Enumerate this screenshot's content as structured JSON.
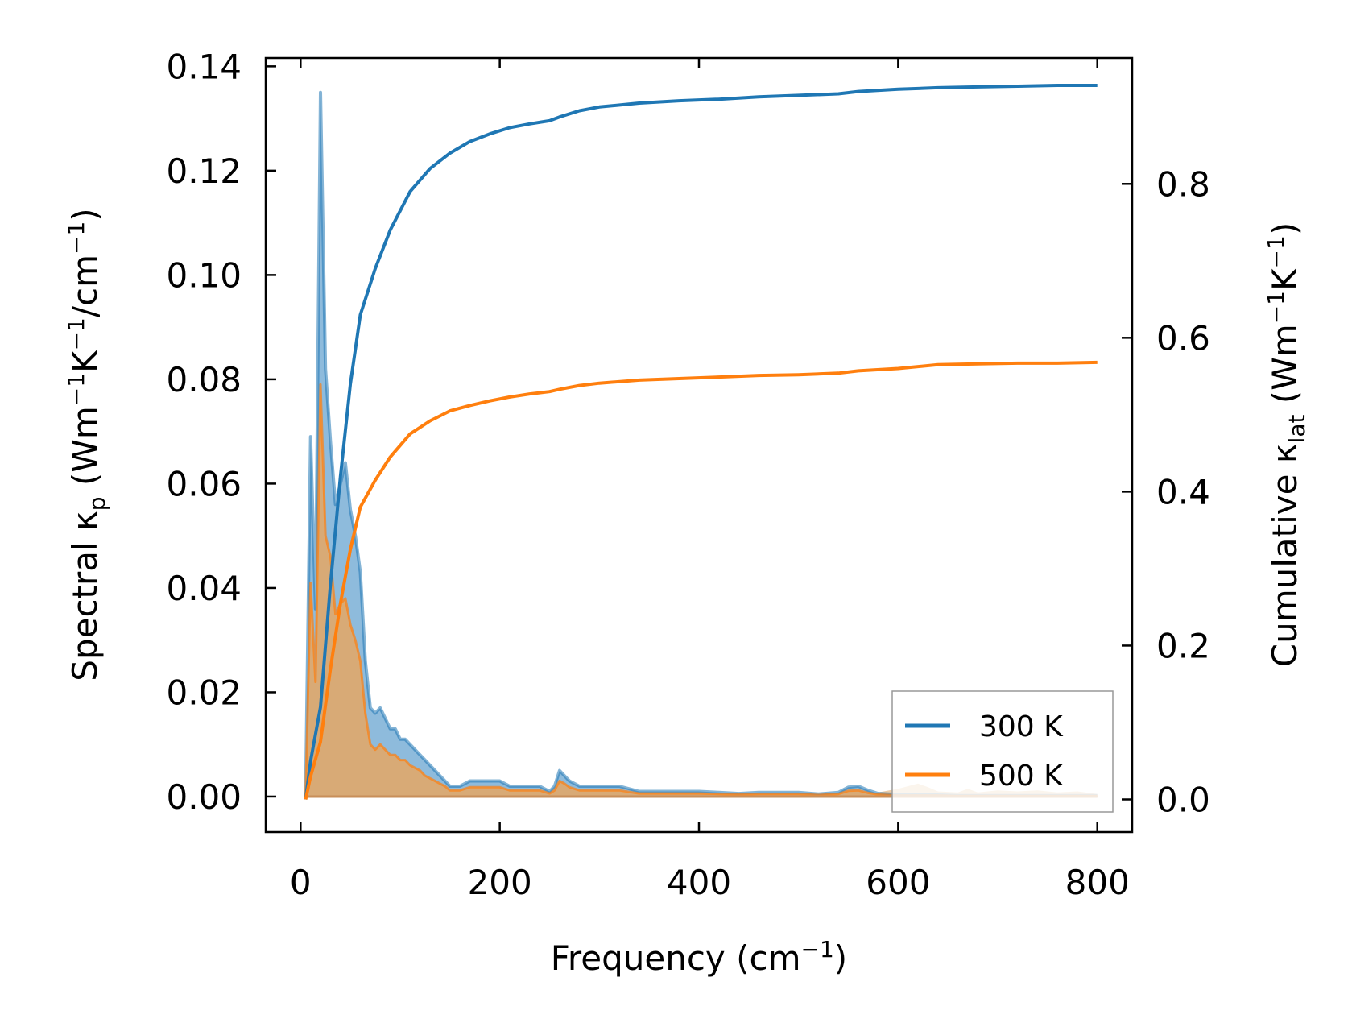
{
  "chart_data": {
    "type": "line",
    "xlabel": {
      "main": "Frequency (cm",
      "sup": "−1",
      "close": ")"
    },
    "ylabel_left": {
      "pre": "Spectral κ",
      "sub": "p",
      "mid": " (Wm",
      "sup1": "−1",
      "k": "K",
      "sup2": "−1",
      "slash": "/cm",
      "sup3": "−1",
      "close": ")"
    },
    "ylabel_right": {
      "pre": "Cumulative κ",
      "sub": "lat",
      "mid": " (Wm",
      "sup1": "−1",
      "k": "K",
      "sup2": "−1",
      "close": ")"
    },
    "xlim": [
      -35,
      835
    ],
    "ylim_left": [
      -0.0068,
      0.1416
    ],
    "ylim_right": [
      -0.0424,
      0.9636
    ],
    "x_ticks": [
      0,
      200,
      400,
      600,
      800
    ],
    "x_tick_labels": [
      "0",
      "200",
      "400",
      "600",
      "800"
    ],
    "y_left_ticks": [
      0.0,
      0.02,
      0.04,
      0.06,
      0.08,
      0.1,
      0.12,
      0.14
    ],
    "y_left_tick_labels": [
      "0.00",
      "0.02",
      "0.04",
      "0.06",
      "0.08",
      "0.10",
      "0.12",
      "0.14"
    ],
    "y_right_ticks": [
      0.0,
      0.2,
      0.4,
      0.6,
      0.8
    ],
    "y_right_tick_labels": [
      "0.0",
      "0.2",
      "0.4",
      "0.6",
      "0.8"
    ],
    "legend_position": "lower-right",
    "colors": {
      "s300": "#1f77b4",
      "s500": "#ff7f0e",
      "fill300": "#7aafd6",
      "fill500": "#e0a96a"
    },
    "series": [
      {
        "name": "300 K",
        "color": "#1f77b4",
        "spectral": [
          [
            5,
            0.0
          ],
          [
            10,
            0.069
          ],
          [
            15,
            0.036
          ],
          [
            20,
            0.135
          ],
          [
            25,
            0.082
          ],
          [
            30,
            0.068
          ],
          [
            35,
            0.056
          ],
          [
            40,
            0.06
          ],
          [
            45,
            0.064
          ],
          [
            50,
            0.055
          ],
          [
            55,
            0.05
          ],
          [
            60,
            0.043
          ],
          [
            65,
            0.026
          ],
          [
            70,
            0.017
          ],
          [
            75,
            0.016
          ],
          [
            80,
            0.017
          ],
          [
            85,
            0.015
          ],
          [
            90,
            0.013
          ],
          [
            95,
            0.013
          ],
          [
            100,
            0.011
          ],
          [
            105,
            0.011
          ],
          [
            110,
            0.01
          ],
          [
            115,
            0.009
          ],
          [
            120,
            0.008
          ],
          [
            125,
            0.007
          ],
          [
            130,
            0.006
          ],
          [
            135,
            0.005
          ],
          [
            140,
            0.004
          ],
          [
            145,
            0.003
          ],
          [
            150,
            0.002
          ],
          [
            160,
            0.002
          ],
          [
            170,
            0.003
          ],
          [
            180,
            0.003
          ],
          [
            190,
            0.003
          ],
          [
            200,
            0.003
          ],
          [
            210,
            0.002
          ],
          [
            220,
            0.002
          ],
          [
            240,
            0.002
          ],
          [
            250,
            0.001
          ],
          [
            255,
            0.002
          ],
          [
            260,
            0.005
          ],
          [
            265,
            0.004
          ],
          [
            270,
            0.003
          ],
          [
            280,
            0.002
          ],
          [
            300,
            0.002
          ],
          [
            320,
            0.002
          ],
          [
            340,
            0.001
          ],
          [
            360,
            0.001
          ],
          [
            380,
            0.001
          ],
          [
            400,
            0.001
          ],
          [
            420,
            0.0008
          ],
          [
            440,
            0.0006
          ],
          [
            460,
            0.0008
          ],
          [
            480,
            0.0008
          ],
          [
            500,
            0.0008
          ],
          [
            520,
            0.0005
          ],
          [
            540,
            0.0008
          ],
          [
            550,
            0.0018
          ],
          [
            560,
            0.002
          ],
          [
            570,
            0.0012
          ],
          [
            580,
            0.0006
          ],
          [
            600,
            0.0004
          ],
          [
            620,
            0.0003
          ],
          [
            640,
            0.0003
          ],
          [
            660,
            0.0002
          ],
          [
            700,
            0.0002
          ],
          [
            750,
            0.0002
          ],
          [
            800,
            0.0002
          ]
        ],
        "cumulative": [
          [
            5,
            0.0
          ],
          [
            10,
            0.05
          ],
          [
            20,
            0.12
          ],
          [
            30,
            0.28
          ],
          [
            40,
            0.42
          ],
          [
            50,
            0.54
          ],
          [
            60,
            0.63
          ],
          [
            75,
            0.69
          ],
          [
            90,
            0.74
          ],
          [
            110,
            0.79
          ],
          [
            130,
            0.82
          ],
          [
            150,
            0.84
          ],
          [
            170,
            0.855
          ],
          [
            190,
            0.865
          ],
          [
            210,
            0.873
          ],
          [
            230,
            0.878
          ],
          [
            250,
            0.882
          ],
          [
            260,
            0.887
          ],
          [
            280,
            0.895
          ],
          [
            300,
            0.9
          ],
          [
            340,
            0.905
          ],
          [
            380,
            0.908
          ],
          [
            420,
            0.91
          ],
          [
            460,
            0.913
          ],
          [
            500,
            0.915
          ],
          [
            540,
            0.917
          ],
          [
            560,
            0.92
          ],
          [
            600,
            0.923
          ],
          [
            640,
            0.925
          ],
          [
            680,
            0.926
          ],
          [
            720,
            0.927
          ],
          [
            760,
            0.928
          ],
          [
            800,
            0.928
          ]
        ]
      },
      {
        "name": "500 K",
        "color": "#ff7f0e",
        "spectral": [
          [
            5,
            0.0
          ],
          [
            10,
            0.041
          ],
          [
            15,
            0.022
          ],
          [
            20,
            0.079
          ],
          [
            25,
            0.05
          ],
          [
            30,
            0.046
          ],
          [
            35,
            0.035
          ],
          [
            40,
            0.037
          ],
          [
            45,
            0.038
          ],
          [
            50,
            0.033
          ],
          [
            55,
            0.03
          ],
          [
            60,
            0.026
          ],
          [
            65,
            0.016
          ],
          [
            70,
            0.01
          ],
          [
            75,
            0.009
          ],
          [
            80,
            0.01
          ],
          [
            85,
            0.009
          ],
          [
            90,
            0.008
          ],
          [
            95,
            0.008
          ],
          [
            100,
            0.007
          ],
          [
            105,
            0.007
          ],
          [
            110,
            0.006
          ],
          [
            115,
            0.0055
          ],
          [
            120,
            0.005
          ],
          [
            125,
            0.004
          ],
          [
            130,
            0.0035
          ],
          [
            135,
            0.003
          ],
          [
            140,
            0.0025
          ],
          [
            145,
            0.002
          ],
          [
            150,
            0.0012
          ],
          [
            160,
            0.0012
          ],
          [
            170,
            0.0018
          ],
          [
            180,
            0.0018
          ],
          [
            190,
            0.0018
          ],
          [
            200,
            0.0018
          ],
          [
            210,
            0.0012
          ],
          [
            220,
            0.0012
          ],
          [
            240,
            0.0012
          ],
          [
            250,
            0.0006
          ],
          [
            255,
            0.0012
          ],
          [
            260,
            0.003
          ],
          [
            265,
            0.0025
          ],
          [
            270,
            0.0018
          ],
          [
            280,
            0.0012
          ],
          [
            300,
            0.0012
          ],
          [
            320,
            0.0012
          ],
          [
            340,
            0.0006
          ],
          [
            360,
            0.0006
          ],
          [
            380,
            0.0006
          ],
          [
            400,
            0.0006
          ],
          [
            420,
            0.0005
          ],
          [
            440,
            0.0004
          ],
          [
            460,
            0.0005
          ],
          [
            480,
            0.0005
          ],
          [
            500,
            0.0005
          ],
          [
            520,
            0.0003
          ],
          [
            540,
            0.0005
          ],
          [
            550,
            0.0011
          ],
          [
            560,
            0.0012
          ],
          [
            570,
            0.0007
          ],
          [
            580,
            0.0004
          ],
          [
            600,
            0.0002
          ],
          [
            620,
            0.0002
          ],
          [
            640,
            0.0002
          ],
          [
            660,
            0.0001
          ],
          [
            700,
            0.0001
          ],
          [
            750,
            0.0001
          ],
          [
            800,
            0.0001
          ]
        ],
        "cumulative": [
          [
            5,
            0.0
          ],
          [
            10,
            0.03
          ],
          [
            20,
            0.075
          ],
          [
            30,
            0.17
          ],
          [
            40,
            0.255
          ],
          [
            50,
            0.325
          ],
          [
            60,
            0.38
          ],
          [
            75,
            0.415
          ],
          [
            90,
            0.445
          ],
          [
            110,
            0.475
          ],
          [
            130,
            0.492
          ],
          [
            150,
            0.505
          ],
          [
            170,
            0.512
          ],
          [
            190,
            0.518
          ],
          [
            210,
            0.523
          ],
          [
            230,
            0.527
          ],
          [
            250,
            0.53
          ],
          [
            260,
            0.533
          ],
          [
            280,
            0.538
          ],
          [
            300,
            0.541
          ],
          [
            340,
            0.545
          ],
          [
            380,
            0.547
          ],
          [
            420,
            0.549
          ],
          [
            460,
            0.551
          ],
          [
            500,
            0.552
          ],
          [
            540,
            0.554
          ],
          [
            560,
            0.557
          ],
          [
            600,
            0.56
          ],
          [
            640,
            0.565
          ],
          [
            680,
            0.566
          ],
          [
            720,
            0.567
          ],
          [
            760,
            0.567
          ],
          [
            800,
            0.568
          ]
        ]
      }
    ],
    "extra_fill": [
      [
        560,
        0.0
      ],
      [
        580,
        0.0008
      ],
      [
        600,
        0.0015
      ],
      [
        620,
        0.0025
      ],
      [
        630,
        0.0018
      ],
      [
        640,
        0.001
      ],
      [
        660,
        0.0008
      ],
      [
        670,
        0.0015
      ],
      [
        680,
        0.0008
      ],
      [
        700,
        0.0012
      ],
      [
        720,
        0.001
      ],
      [
        740,
        0.0012
      ],
      [
        760,
        0.0008
      ],
      [
        780,
        0.001
      ],
      [
        800,
        0.0005
      ]
    ]
  }
}
